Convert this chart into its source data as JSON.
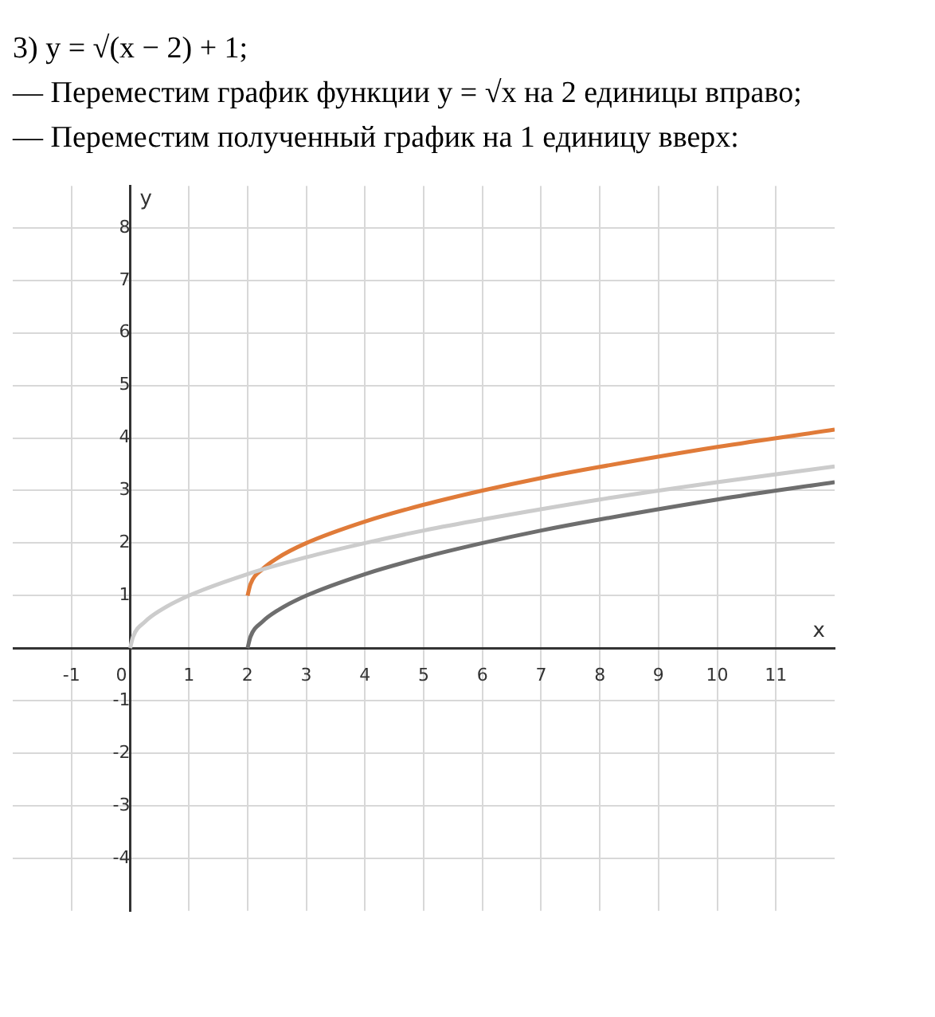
{
  "chart_data": {
    "type": "line",
    "title": "3) y = √(x − 2) + 1;",
    "annotations": [
      "— Переместим график функции y = √x на 2 единицы вправо;",
      "— Переместим полученный график на 1 единицу вверх:"
    ],
    "xlabel": "x",
    "ylabel": "y",
    "xlim": [
      -2,
      12
    ],
    "ylim": [
      -5,
      8.8
    ],
    "xticks": [
      -1,
      0,
      1,
      2,
      3,
      4,
      5,
      6,
      7,
      8,
      9,
      10,
      11
    ],
    "yticks": [
      -4,
      -3,
      -2,
      -1,
      1,
      2,
      3,
      4,
      5,
      6,
      7,
      8
    ],
    "grid": true,
    "legend": false,
    "marker": "none",
    "line_style": "solid",
    "series": [
      {
        "color": "#cccccc",
        "x": [
          0,
          0.05,
          0.25,
          0.5,
          1,
          2,
          3,
          4,
          5,
          6,
          8,
          10,
          12
        ],
        "values": [
          0,
          0.22,
          0.5,
          0.71,
          1,
          1.41,
          1.73,
          2,
          2.24,
          2.45,
          2.83,
          3.16,
          3.46
        ]
      },
      {
        "color": "#6e6e6e",
        "x": [
          2,
          2.05,
          2.25,
          2.5,
          3,
          4,
          5,
          6,
          7,
          8,
          10,
          12
        ],
        "values": [
          0,
          0.22,
          0.5,
          0.71,
          1,
          1.41,
          1.73,
          2,
          2.24,
          2.45,
          2.83,
          3.16
        ]
      },
      {
        "color": "#e07b39",
        "x": [
          2,
          2.05,
          2.25,
          2.5,
          3,
          4,
          5,
          6,
          7,
          8,
          10,
          12
        ],
        "values": [
          1,
          1.22,
          1.5,
          1.71,
          2,
          2.41,
          2.73,
          3,
          3.24,
          3.45,
          3.83,
          4.16
        ]
      }
    ]
  }
}
